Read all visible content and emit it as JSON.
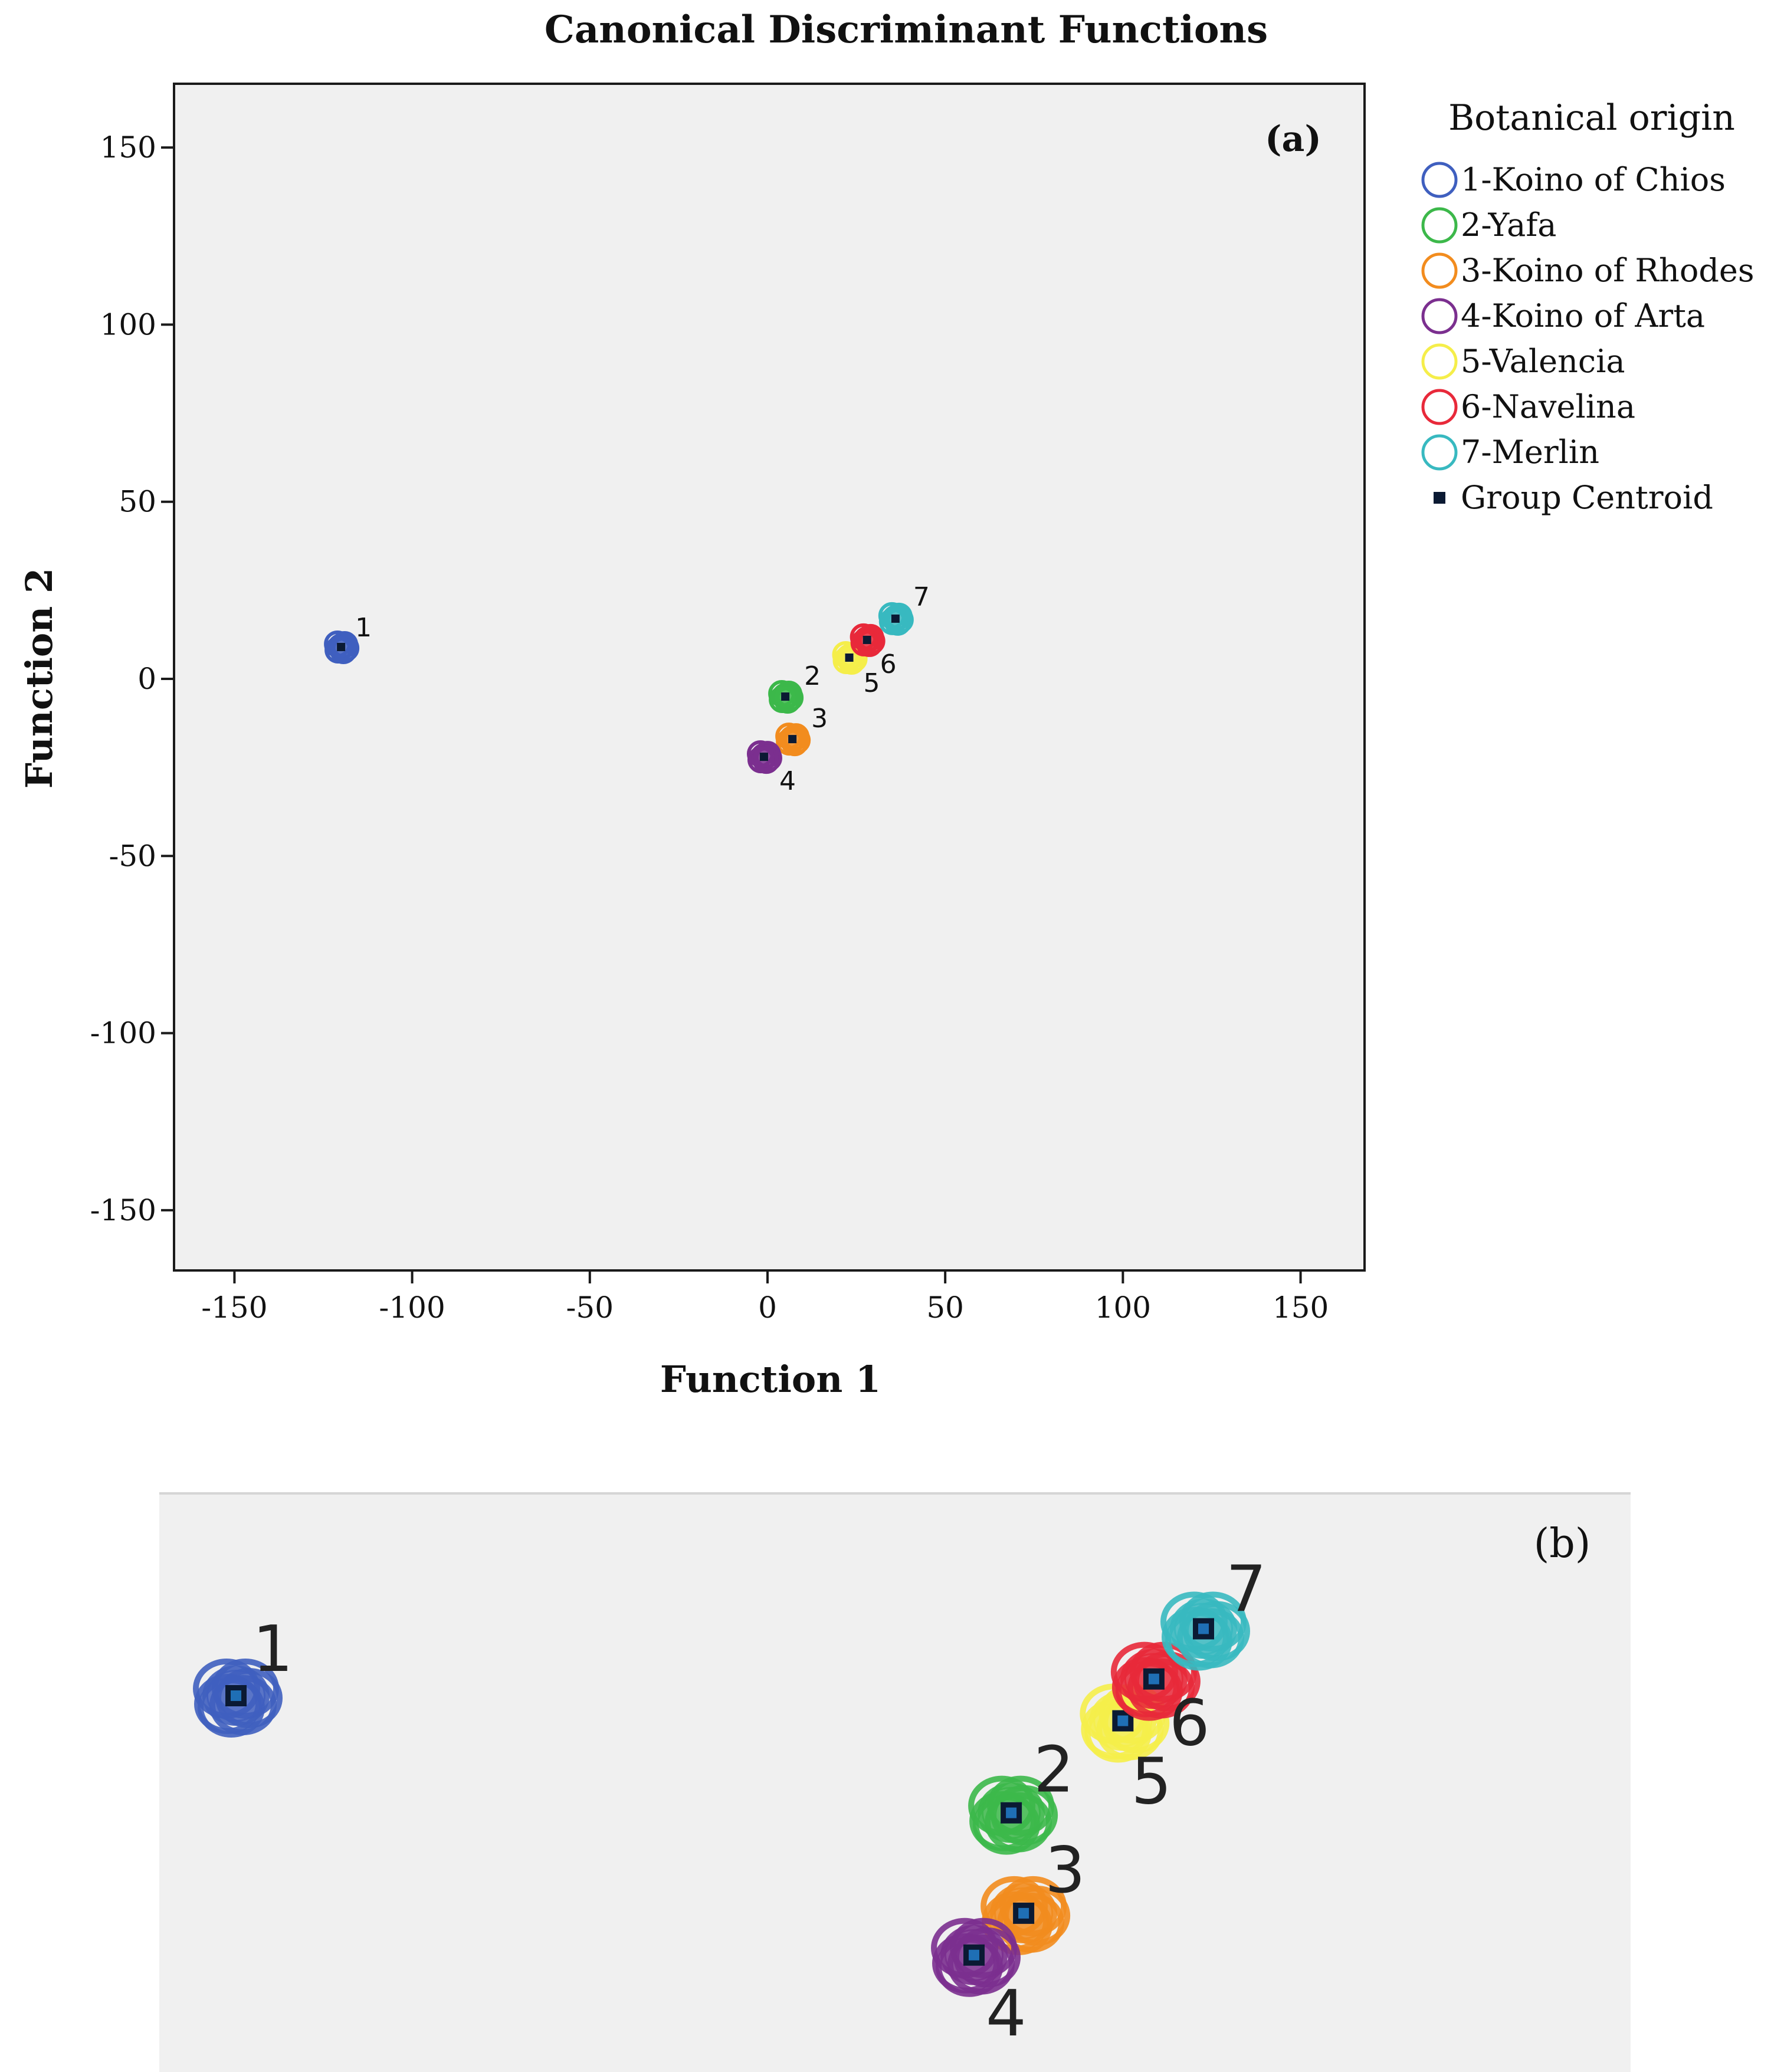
{
  "chart_data": [
    {
      "panel": "(a)",
      "type": "scatter",
      "title": "Canonical Discriminant Functions",
      "xlabel": "Function 1",
      "ylabel": "Function 2",
      "xlim": [
        -167,
        168
      ],
      "ylim": [
        -167,
        168
      ],
      "xticks": [
        -150,
        -100,
        -50,
        0,
        50,
        100,
        150
      ],
      "yticks": [
        -150,
        -100,
        -50,
        0,
        50,
        100,
        150
      ],
      "grid": false,
      "legend_title": "Botanical origin",
      "legend_position": "right",
      "centroid_label": "Group Centroid",
      "series": [
        {
          "id": "1",
          "name": "1-Koino of Chios",
          "color": "#3f5fbf",
          "centroid": [
            -120,
            9
          ]
        },
        {
          "id": "2",
          "name": "2-Yafa",
          "color": "#3cb84a",
          "centroid": [
            5,
            -5
          ]
        },
        {
          "id": "3",
          "name": "3-Koino of Rhodes",
          "color": "#f28c1e",
          "centroid": [
            7,
            -17
          ]
        },
        {
          "id": "4",
          "name": "4-Koino of Arta",
          "color": "#7b2f8f",
          "centroid": [
            -1,
            -22
          ]
        },
        {
          "id": "5",
          "name": "5-Valencia",
          "color": "#f5ee4a",
          "centroid": [
            23,
            6
          ]
        },
        {
          "id": "6",
          "name": "6-Navelina",
          "color": "#e8293a",
          "centroid": [
            28,
            11
          ]
        },
        {
          "id": "7",
          "name": "7-Merlin",
          "color": "#38b9c0",
          "centroid": [
            36,
            17
          ]
        }
      ]
    },
    {
      "panel": "(b)",
      "type": "scatter",
      "title": "",
      "xlabel": "",
      "ylabel": "",
      "description_axis_hidden": true,
      "zoom_of": "(a)"
    }
  ]
}
